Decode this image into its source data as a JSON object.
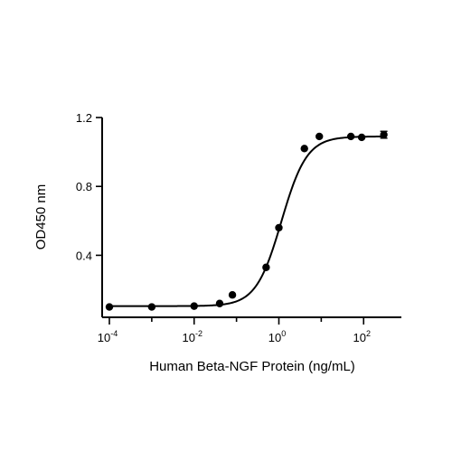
{
  "chart_data": {
    "type": "scatter",
    "title": "",
    "xlabel": "Human Beta-NGF Protein (ng/mL)",
    "ylabel": "OD450 nm",
    "x_scale": "log",
    "xlim": [
      0.0001,
      500
    ],
    "ylim": [
      0.04,
      1.2
    ],
    "x_ticks": [
      {
        "value": 0.0001,
        "base": "10",
        "exp": "-4"
      },
      {
        "value": 0.01,
        "base": "10",
        "exp": "-2"
      },
      {
        "value": 1,
        "base": "10",
        "exp": "0"
      },
      {
        "value": 100,
        "base": "10",
        "exp": "2"
      }
    ],
    "y_ticks": [
      {
        "value": 0.4,
        "label": "0.4"
      },
      {
        "value": 0.8,
        "label": "0.8"
      },
      {
        "value": 1.2,
        "label": "1.2"
      }
    ],
    "grid": false,
    "series": [
      {
        "points": [
          {
            "x": 0.0001,
            "y": 0.1
          },
          {
            "x": 0.001,
            "y": 0.1
          },
          {
            "x": 0.01,
            "y": 0.105
          },
          {
            "x": 0.04,
            "y": 0.12
          },
          {
            "x": 0.08,
            "y": 0.17
          },
          {
            "x": 0.5,
            "y": 0.33
          },
          {
            "x": 1,
            "y": 0.56
          },
          {
            "x": 4,
            "y": 1.02
          },
          {
            "x": 9,
            "y": 1.09
          },
          {
            "x": 50,
            "y": 1.09
          },
          {
            "x": 90,
            "y": 1.085
          },
          {
            "x": 300,
            "y": 1.1,
            "err": 0.02
          }
        ],
        "fit": {
          "bottom": 0.105,
          "top": 1.09,
          "ec50": 1.15,
          "hill": 1.45
        }
      }
    ]
  }
}
